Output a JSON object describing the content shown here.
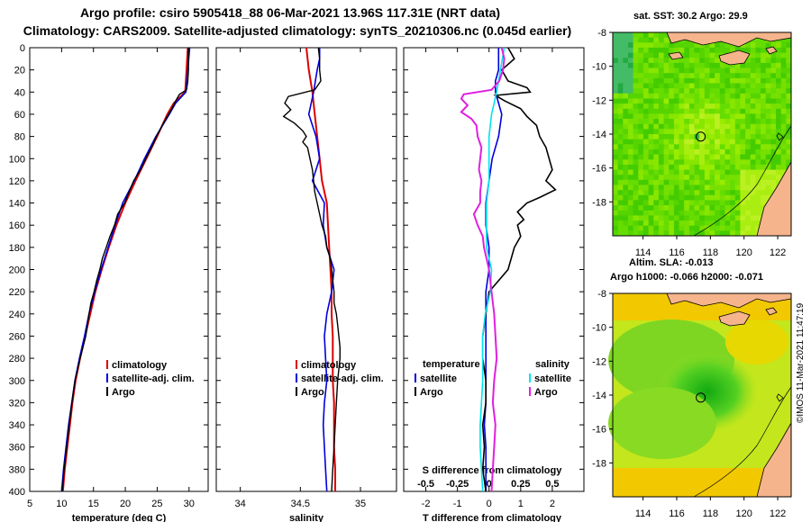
{
  "title_line1": "Argo profile: csiro 5905418_88 06-Mar-2021 13.96S 117.31E (NRT data)",
  "title_line2": "Climatology: CARS2009. Satellite-adjusted climatology: synTS_20210306.nc (0.045d earlier)",
  "colors": {
    "climatology": "#dd0000",
    "satellite": "#0000dd",
    "argo": "#000000",
    "sat_salinity": "#00e5ee",
    "argo_salinity": "#e020e0"
  },
  "depth_axis": {
    "ticks": [
      0,
      20,
      40,
      60,
      80,
      100,
      120,
      140,
      160,
      180,
      200,
      220,
      240,
      260,
      280,
      300,
      320,
      340,
      360,
      380,
      400
    ],
    "range": [
      0,
      400
    ]
  },
  "chart_data": [
    {
      "type": "line",
      "id": "temperature",
      "xlabel": "temperature (deg C)",
      "xlim": [
        5,
        33
      ],
      "xticks": [
        5,
        10,
        15,
        20,
        25,
        30
      ],
      "legend": [
        "climatology",
        "satellite-adj. clim.",
        "Argo"
      ],
      "series": [
        {
          "name": "climatology",
          "depth": [
            0,
            20,
            40,
            50,
            60,
            80,
            100,
            120,
            140,
            160,
            180,
            200,
            220,
            240,
            260,
            280,
            300,
            320,
            340,
            360,
            380,
            400
          ],
          "values": [
            29.8,
            29.6,
            29.4,
            27.6,
            26.6,
            25.0,
            23.3,
            21.6,
            20.0,
            18.6,
            17.4,
            16.3,
            15.3,
            14.5,
            13.7,
            12.9,
            12.2,
            11.7,
            11.3,
            10.9,
            10.5,
            10.2
          ]
        },
        {
          "name": "satellite-adj. clim.",
          "depth": [
            0,
            20,
            40,
            50,
            60,
            80,
            100,
            120,
            140,
            160,
            180,
            200,
            220,
            240,
            260,
            280,
            300,
            320,
            340,
            360,
            380,
            400
          ],
          "values": [
            30.1,
            29.8,
            29.5,
            27.9,
            26.9,
            24.8,
            23.0,
            21.4,
            19.6,
            18.4,
            17.3,
            16.2,
            15.2,
            14.3,
            13.6,
            12.8,
            12.1,
            11.6,
            11.1,
            10.7,
            10.3,
            10.0
          ]
        },
        {
          "name": "Argo",
          "depth": [
            0,
            10,
            20,
            30,
            38,
            42,
            48,
            55,
            62,
            70,
            80,
            90,
            100,
            110,
            120,
            130,
            140,
            150,
            160,
            170,
            180,
            190,
            200,
            210,
            220,
            230,
            240,
            260,
            280,
            300,
            320,
            340,
            360,
            380,
            400
          ],
          "values": [
            29.9,
            29.9,
            29.9,
            29.8,
            29.6,
            28.5,
            27.9,
            27.3,
            26.6,
            25.8,
            24.9,
            24.1,
            23.2,
            22.4,
            21.3,
            20.6,
            19.9,
            18.8,
            18.3,
            17.6,
            17.0,
            16.4,
            16.0,
            15.5,
            15.1,
            14.6,
            14.3,
            13.8,
            12.9,
            12.1,
            11.6,
            11.2,
            10.8,
            10.4,
            10.1
          ]
        }
      ]
    },
    {
      "type": "line",
      "id": "salinity",
      "xlabel": "salinity",
      "xlim": [
        33.8,
        35.3
      ],
      "xticks": [
        34,
        34.5,
        35
      ],
      "xticklabels": [
        "34",
        "34.5",
        "35"
      ],
      "legend": [
        "climatology",
        "satellite-adj. clim.",
        "Argo"
      ],
      "series": [
        {
          "name": "climatology",
          "depth": [
            0,
            20,
            40,
            60,
            80,
            100,
            120,
            140,
            160,
            180,
            200,
            220,
            240,
            260,
            280,
            300,
            320,
            340,
            360,
            380,
            400
          ],
          "values": [
            34.55,
            34.57,
            34.6,
            34.62,
            34.64,
            34.66,
            34.68,
            34.72,
            34.73,
            34.74,
            34.75,
            34.76,
            34.76,
            34.77,
            34.77,
            34.77,
            34.78,
            34.78,
            34.78,
            34.79,
            34.79
          ]
        },
        {
          "name": "satellite-adj. clim.",
          "depth": [
            0,
            10,
            20,
            40,
            60,
            80,
            100,
            120,
            140,
            160,
            180,
            200,
            220,
            240,
            260,
            280,
            300,
            320,
            340,
            360,
            380,
            400
          ],
          "values": [
            34.66,
            34.66,
            34.64,
            34.61,
            34.57,
            34.63,
            34.66,
            34.6,
            34.7,
            34.69,
            34.72,
            34.78,
            34.76,
            34.72,
            34.7,
            34.71,
            34.72,
            34.7,
            34.69,
            34.7,
            34.71,
            34.72
          ]
        },
        {
          "name": "Argo",
          "depth": [
            0,
            10,
            20,
            30,
            38,
            44,
            50,
            56,
            62,
            68,
            75,
            80,
            85,
            90,
            100,
            110,
            120,
            130,
            140,
            150,
            160,
            170,
            180,
            190,
            200,
            210,
            220,
            230,
            240,
            250,
            260,
            270,
            280,
            290,
            300,
            320,
            340,
            360,
            380,
            400
          ],
          "values": [
            34.65,
            34.66,
            34.66,
            34.67,
            34.62,
            34.4,
            34.37,
            34.42,
            34.36,
            34.45,
            34.52,
            34.55,
            34.52,
            34.56,
            34.58,
            34.6,
            34.61,
            34.62,
            34.64,
            34.66,
            34.68,
            34.71,
            34.72,
            34.75,
            34.76,
            34.77,
            34.78,
            34.78,
            34.8,
            34.81,
            34.82,
            34.83,
            34.83,
            34.82,
            34.81,
            34.8,
            34.79,
            34.78,
            34.77,
            34.76
          ]
        }
      ]
    },
    {
      "type": "line",
      "id": "difference",
      "xlabel": "T difference from climatology",
      "x2label": "S difference from climatology",
      "xlim": [
        -2.7,
        3.0
      ],
      "xticks": [
        -2,
        -1,
        0,
        1,
        2
      ],
      "x2lim": [
        -0.675,
        0.75
      ],
      "x2ticks": [
        -0.5,
        -0.25,
        0,
        0.25,
        0.5
      ],
      "x2ticklabels": [
        "-0.5",
        "-0.25",
        "0",
        "0.25",
        "0.5"
      ],
      "legend_temperature_title": "temperature",
      "legend_salinity_title": "salinity",
      "legend_temperature": [
        "satellite",
        "Argo"
      ],
      "legend_salinity": [
        "satellite",
        "Argo"
      ],
      "series": [
        {
          "name": "T satellite",
          "depth": [
            0,
            10,
            20,
            30,
            40,
            50,
            60,
            80,
            100,
            120,
            140,
            160,
            180,
            200,
            220,
            240,
            260,
            280,
            300,
            320,
            340,
            360,
            380,
            400
          ],
          "values": [
            0.3,
            0.3,
            0.3,
            0.2,
            0.2,
            0.3,
            0.4,
            0.3,
            0.1,
            0.0,
            -0.1,
            -0.1,
            0.0,
            0.0,
            -0.1,
            -0.1,
            -0.1,
            -0.1,
            -0.1,
            -0.1,
            -0.15,
            -0.1,
            -0.1,
            -0.1
          ]
        },
        {
          "name": "T Argo",
          "depth": [
            0,
            10,
            20,
            30,
            36,
            40,
            43,
            48,
            55,
            62,
            70,
            80,
            90,
            100,
            110,
            120,
            128,
            135,
            140,
            148,
            155,
            160,
            170,
            180,
            200,
            220,
            240,
            260,
            280,
            300,
            320,
            340,
            360,
            380,
            400
          ],
          "values": [
            0.6,
            0.8,
            0.4,
            0.6,
            1.2,
            1.3,
            0.2,
            0.5,
            1.0,
            1.2,
            1.5,
            1.6,
            1.8,
            1.9,
            2.0,
            1.8,
            2.1,
            1.6,
            1.2,
            0.9,
            1.1,
            0.9,
            1.0,
            0.8,
            0.6,
            0.0,
            -0.1,
            -0.2,
            -0.2,
            -0.1,
            -0.1,
            -0.2,
            -0.15,
            -0.2,
            -0.1
          ]
        },
        {
          "name": "S satellite",
          "depth": [
            0,
            20,
            40,
            60,
            80,
            100,
            120,
            140,
            160,
            180,
            200,
            220,
            240,
            260,
            280,
            300,
            320,
            340,
            360,
            380,
            400
          ],
          "values": [
            0.12,
            0.09,
            0.06,
            0.02,
            0.0,
            0.0,
            0.0,
            -0.02,
            -0.02,
            -0.02,
            0.02,
            0.01,
            -0.03,
            -0.05,
            -0.05,
            -0.05,
            -0.06,
            -0.07,
            -0.07,
            -0.06,
            -0.05
          ]
        },
        {
          "name": "S Argo",
          "depth": [
            0,
            10,
            20,
            30,
            38,
            42,
            46,
            52,
            58,
            64,
            70,
            80,
            90,
            100,
            110,
            120,
            130,
            140,
            150,
            160,
            170,
            180,
            190,
            200,
            210,
            220,
            240,
            260,
            280,
            300,
            320,
            340,
            360,
            380,
            400
          ],
          "values": [
            0.1,
            0.12,
            0.11,
            0.08,
            0.02,
            -0.2,
            -0.22,
            -0.17,
            -0.22,
            -0.14,
            -0.1,
            -0.09,
            -0.06,
            -0.07,
            -0.08,
            -0.06,
            -0.07,
            -0.07,
            -0.12,
            -0.09,
            -0.05,
            -0.04,
            -0.02,
            0.0,
            0.01,
            0.02,
            0.04,
            0.05,
            0.06,
            0.04,
            0.03,
            0.05,
            0.04,
            0.03,
            0.02
          ]
        }
      ]
    },
    {
      "type": "heatmap",
      "id": "sst_map",
      "title": "sat. SST: 30.2 Argo: 29.9",
      "xticks": [
        114,
        116,
        118,
        120,
        122
      ],
      "yticks": [
        -8,
        -10,
        -12,
        -14,
        -16,
        -18
      ],
      "xlim": [
        112.2,
        122.8
      ],
      "ylim": [
        -20,
        -8
      ],
      "profile_location": [
        117.31,
        -13.96
      ]
    },
    {
      "type": "heatmap",
      "id": "sla_map",
      "title_line1": "Altim. SLA: -0.013",
      "title_line2": "Argo h1000: -0.066 h2000: -0.071",
      "xticks": [
        114,
        116,
        118,
        120,
        122
      ],
      "yticks": [
        -8,
        -10,
        -12,
        -14,
        -16,
        -18
      ],
      "xlim": [
        112.2,
        122.8
      ],
      "ylim": [
        -20,
        -8
      ],
      "profile_location": [
        117.31,
        -13.96
      ]
    }
  ],
  "credit": "©IMOS 11-Mar-2021 11:47:19"
}
